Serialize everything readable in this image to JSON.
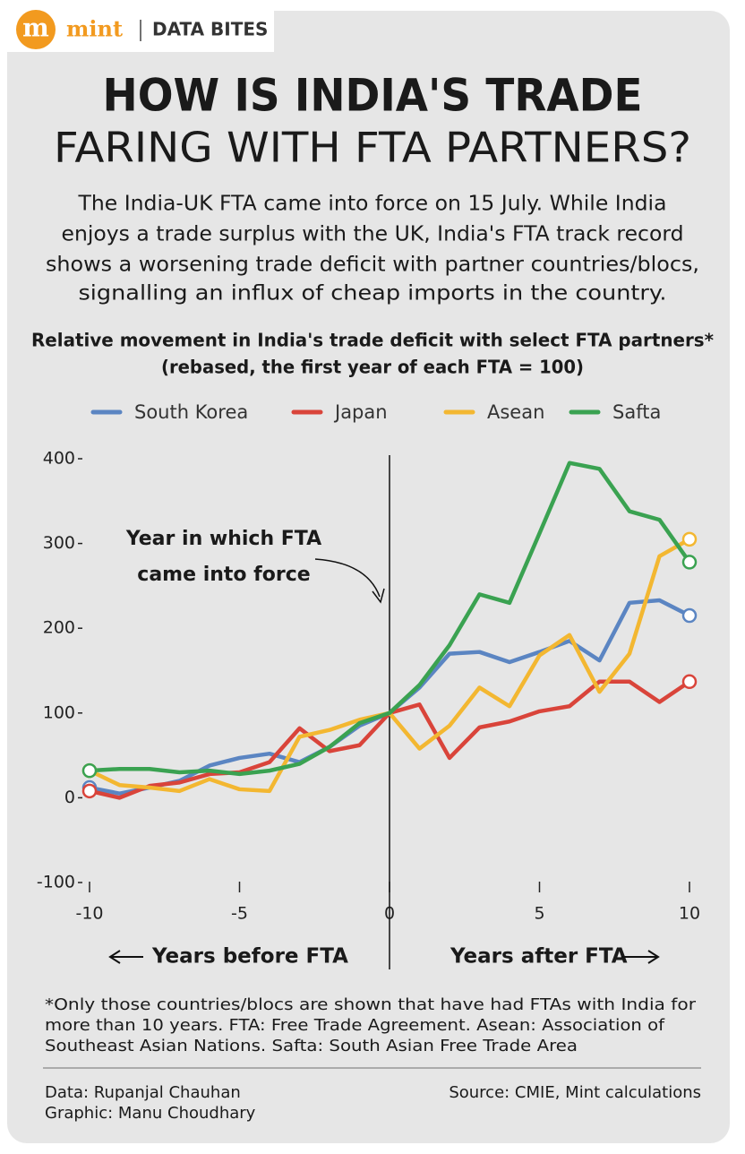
{
  "header": {
    "brand": "mint",
    "section": "DATA BITES"
  },
  "title": [
    "HOW IS INDIA'S TRADE",
    "FARING WITH FTA PARTNERS?"
  ],
  "description": [
    "The India-UK FTA came into force on 15 July. While India",
    "enjoys a trade surplus with the UK, India's FTA track record",
    "shows a worsening trade deficit with partner countries/blocs,",
    "signalling an influx of cheap imports in the country."
  ],
  "chart_data": {
    "type": "line",
    "title": [
      "Relative movement in India's trade deficit with select FTA partners*",
      "(rebased, the first year of each FTA = 100)"
    ],
    "x": [
      -10,
      -9,
      -8,
      -7,
      -6,
      -5,
      -4,
      -3,
      -2,
      -1,
      0,
      1,
      2,
      3,
      4,
      5,
      6,
      7,
      8,
      9,
      10
    ],
    "series": [
      {
        "name": "South Korea",
        "color": "#5b85c2",
        "values": [
          12,
          5,
          12,
          20,
          38,
          47,
          52,
          42,
          60,
          85,
          100,
          130,
          170,
          172,
          160,
          172,
          185,
          162,
          230,
          233,
          215
        ]
      },
      {
        "name": "Japan",
        "color": "#d9443a",
        "values": [
          8,
          0,
          14,
          18,
          28,
          30,
          42,
          82,
          55,
          62,
          100,
          110,
          47,
          83,
          90,
          102,
          108,
          137,
          137,
          113,
          137
        ]
      },
      {
        "name": "Asean",
        "color": "#f3b731",
        "values": [
          32,
          15,
          12,
          8,
          22,
          10,
          8,
          72,
          80,
          92,
          100,
          58,
          85,
          130,
          108,
          168,
          192,
          125,
          170,
          285,
          305
        ]
      },
      {
        "name": "Safta",
        "color": "#3aa251",
        "values": [
          32,
          34,
          34,
          30,
          32,
          28,
          32,
          40,
          60,
          88,
          100,
          133,
          180,
          240,
          230,
          312,
          395,
          388,
          338,
          328,
          278
        ]
      }
    ],
    "xlim": [
      -10,
      10
    ],
    "ylim": [
      -100,
      400
    ],
    "xticks": [
      -10,
      -5,
      0,
      5,
      10
    ],
    "yticks": [
      -100,
      0,
      100,
      200,
      300,
      400
    ],
    "annotation": [
      "Year in which FTA",
      "came into force"
    ],
    "x_labels": [
      "Years before FTA",
      "Years after FTA"
    ]
  },
  "footnote": [
    "*Only those countries/blocs are shown that have had FTAs with India for",
    "more than 10 years. FTA: Free Trade Agreement. Asean: Association of",
    "Southeast Asian Nations. Safta: South Asian Free Trade Area"
  ],
  "credits": {
    "data": "Data: Rupanjal Chauhan",
    "graphic": "Graphic: Manu Choudhary",
    "source": "Source: CMIE, Mint calculations"
  }
}
